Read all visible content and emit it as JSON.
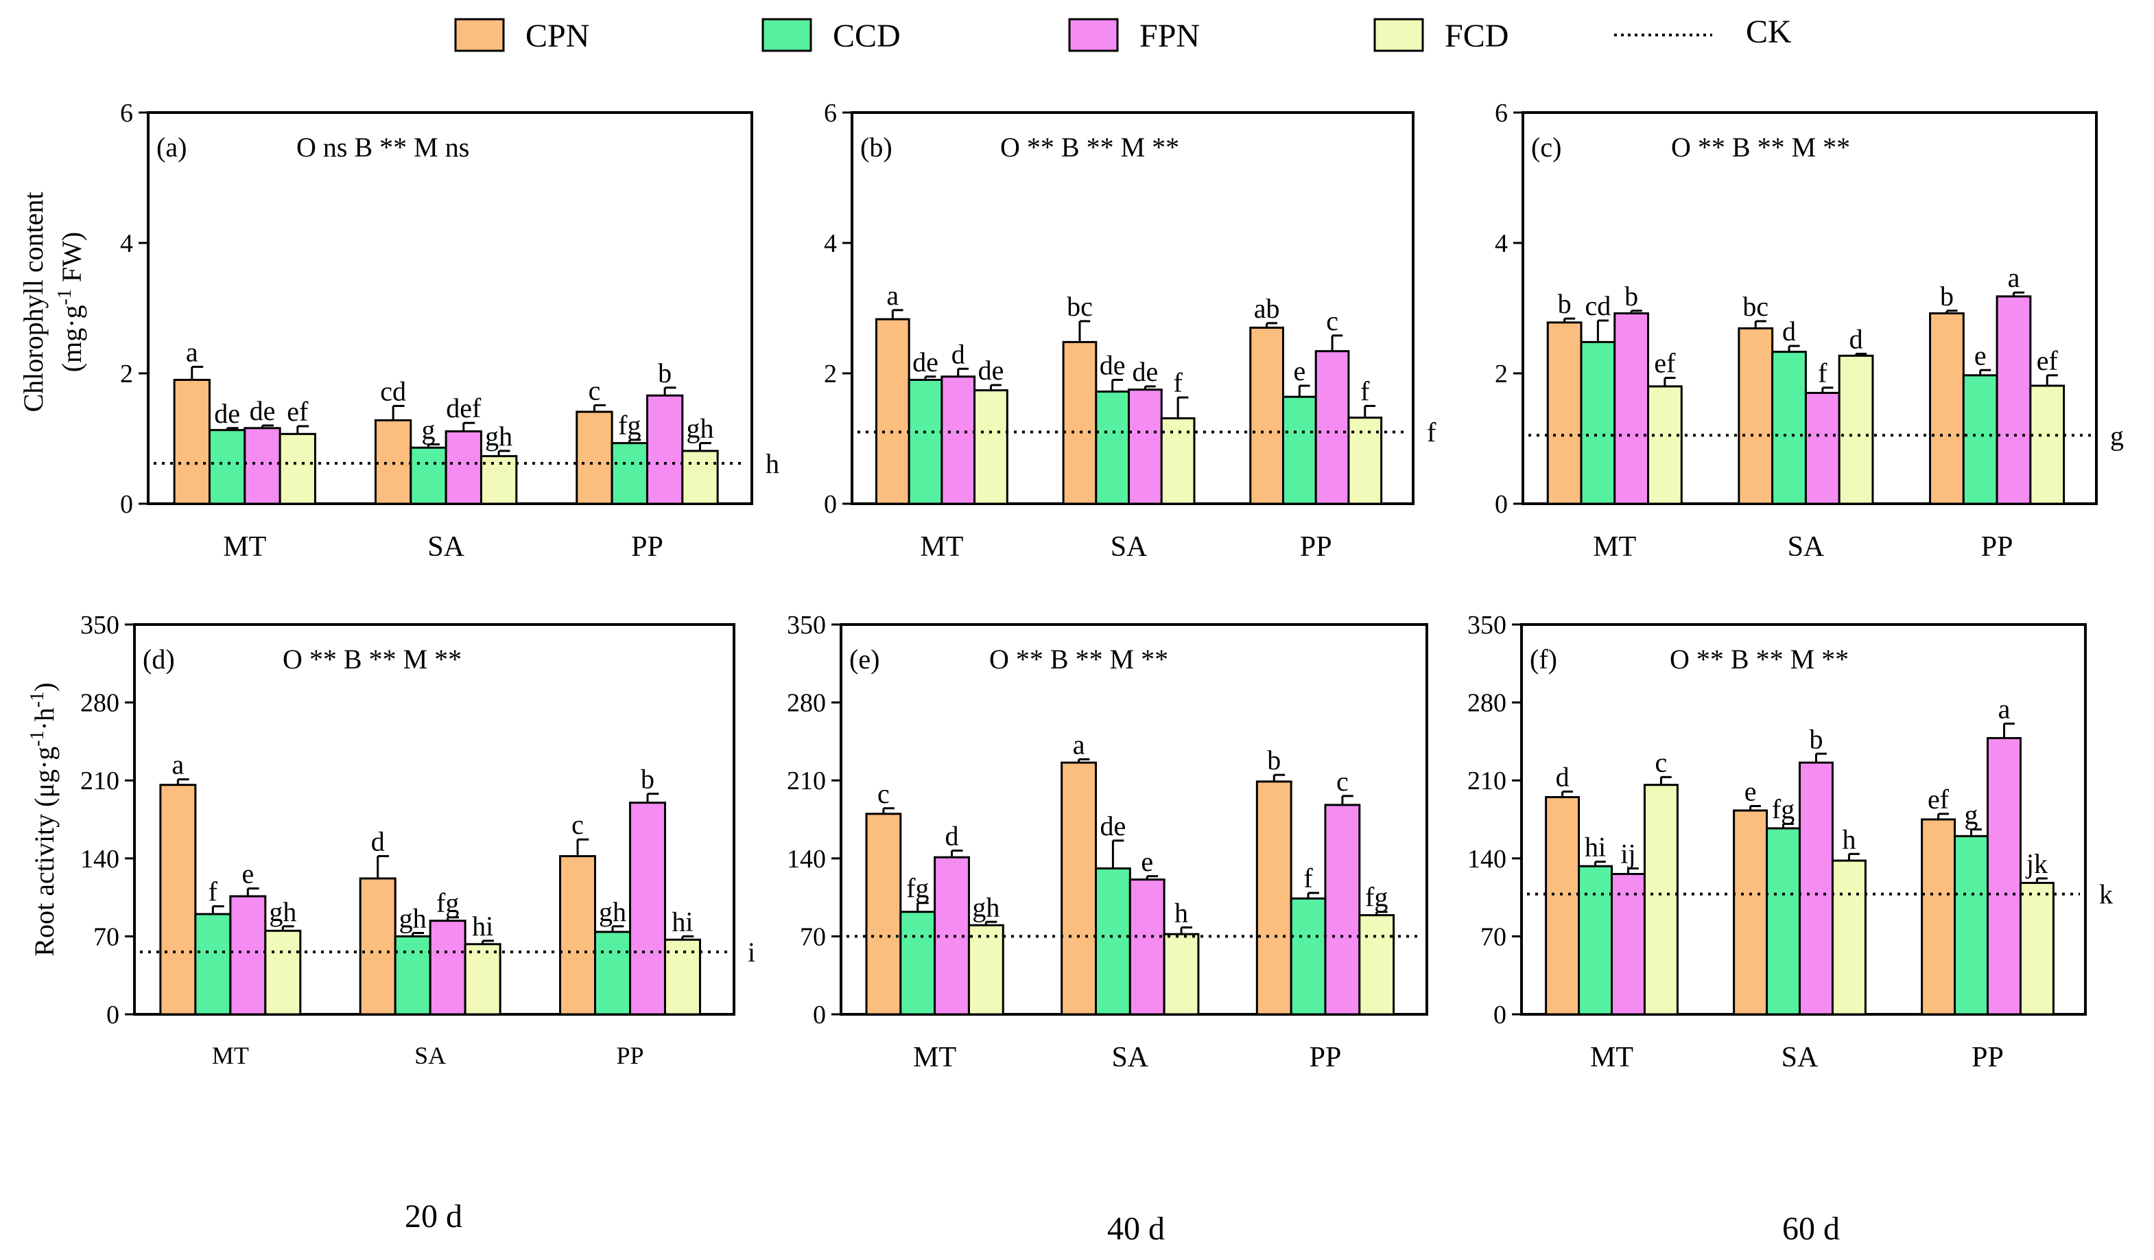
{
  "chart_data": {
    "type": "bar",
    "legend": [
      {
        "name": "CPN",
        "color": "#FBBE7E"
      },
      {
        "name": "CCD",
        "color": "#55F0A0"
      },
      {
        "name": "FPN",
        "color": "#F48CF2"
      },
      {
        "name": "FCD",
        "color": "#F1FAB8"
      },
      {
        "name": "CK",
        "style": "dotted"
      }
    ],
    "categories": [
      "MT",
      "SA",
      "PP"
    ],
    "row_ylabels": [
      {
        "main": "Chlorophyll content",
        "sub": "(mg·g",
        "sup": "-1",
        "tail": " FW)"
      },
      {
        "main": "Root activity (μg·g",
        "sup1": "-1",
        "mid": "·h",
        "sup2": "-1",
        "tail": ")"
      }
    ],
    "time_labels": [
      "20 d",
      "40 d",
      "60 d"
    ],
    "panels": [
      {
        "tag": "(a)",
        "stats": "O ns  B **  M ns",
        "ylim": [
          0,
          6
        ],
        "ticks": [
          0,
          2,
          4,
          6
        ],
        "ck": 0.62,
        "ck_letter": "h",
        "values": [
          [
            1.9,
            1.13,
            1.16,
            1.07
          ],
          [
            1.28,
            0.86,
            1.11,
            0.73
          ],
          [
            1.41,
            0.93,
            1.66,
            0.81
          ]
        ],
        "errors": [
          [
            0.2,
            0.03,
            0.04,
            0.12
          ],
          [
            0.22,
            0.05,
            0.13,
            0.08
          ],
          [
            0.1,
            0.05,
            0.12,
            0.12
          ]
        ],
        "letters": [
          [
            "a",
            "de",
            "de",
            "ef"
          ],
          [
            "cd",
            "g",
            "def",
            "gh"
          ],
          [
            "c",
            "fg",
            "b",
            "gh"
          ]
        ]
      },
      {
        "tag": "(b)",
        "stats": "O **  B **  M **",
        "ylim": [
          0,
          6
        ],
        "ticks": [
          0,
          2,
          4,
          6
        ],
        "ck": 1.1,
        "ck_letter": "f",
        "values": [
          [
            2.83,
            1.9,
            1.95,
            1.74
          ],
          [
            2.48,
            1.72,
            1.75,
            1.31
          ],
          [
            2.7,
            1.64,
            2.34,
            1.32
          ]
        ],
        "errors": [
          [
            0.14,
            0.05,
            0.12,
            0.08
          ],
          [
            0.32,
            0.18,
            0.05,
            0.32
          ],
          [
            0.07,
            0.17,
            0.24,
            0.18
          ]
        ],
        "letters": [
          [
            "a",
            "de",
            "d",
            "de"
          ],
          [
            "bc",
            "de",
            "de",
            "f"
          ],
          [
            "ab",
            "e",
            "c",
            "f"
          ]
        ]
      },
      {
        "tag": "(c)",
        "stats": "O **  B **  M **",
        "ylim": [
          0,
          6
        ],
        "ticks": [
          0,
          2,
          4,
          6
        ],
        "ck": 1.05,
        "ck_letter": "g",
        "values": [
          [
            2.78,
            2.48,
            2.92,
            1.8
          ],
          [
            2.69,
            2.33,
            1.7,
            2.27
          ],
          [
            2.92,
            1.97,
            3.18,
            1.81
          ]
        ],
        "errors": [
          [
            0.06,
            0.33,
            0.04,
            0.13
          ],
          [
            0.11,
            0.09,
            0.08,
            0.03
          ],
          [
            0.04,
            0.08,
            0.06,
            0.16
          ]
        ],
        "letters": [
          [
            "b",
            "cd",
            "b",
            "ef"
          ],
          [
            "bc",
            "d",
            "f",
            "d"
          ],
          [
            "b",
            "e",
            "a",
            "ef"
          ]
        ]
      },
      {
        "tag": "(d)",
        "stats": "O **  B **  M **",
        "ylim": [
          0,
          350
        ],
        "ticks": [
          0,
          70,
          140,
          210,
          280,
          350
        ],
        "ck": 56,
        "ck_letter": "i",
        "small_cats": true,
        "values": [
          [
            206,
            90,
            106,
            75
          ],
          [
            122,
            70,
            84,
            63
          ],
          [
            142,
            74,
            190,
            67
          ]
        ],
        "errors": [
          [
            5,
            7,
            7,
            4
          ],
          [
            20,
            3,
            3,
            3
          ],
          [
            15,
            5,
            8,
            3
          ]
        ],
        "letters": [
          [
            "a",
            "f",
            "e",
            "gh"
          ],
          [
            "d",
            "gh",
            "fg",
            "hi"
          ],
          [
            "c",
            "gh",
            "b",
            "hi"
          ]
        ]
      },
      {
        "tag": "(e)",
        "stats": "O **  B **  M **",
        "ylim": [
          0,
          350
        ],
        "ticks": [
          0,
          70,
          140,
          210,
          280,
          350
        ],
        "ck": 70,
        "ck_letter": "",
        "values": [
          [
            180,
            92,
            141,
            80
          ],
          [
            226,
            131,
            121,
            72
          ],
          [
            209,
            104,
            188,
            89
          ]
        ],
        "errors": [
          [
            5,
            8,
            6,
            3
          ],
          [
            3,
            25,
            3,
            6
          ],
          [
            6,
            5,
            8,
            3
          ]
        ],
        "letters": [
          [
            "c",
            "fg",
            "d",
            "gh"
          ],
          [
            "a",
            "de",
            "e",
            "h"
          ],
          [
            "b",
            "f",
            "c",
            "fg"
          ]
        ]
      },
      {
        "tag": "(f)",
        "stats": "O **  B **  M **",
        "ylim": [
          0,
          350
        ],
        "ticks": [
          0,
          70,
          140,
          210,
          280,
          350
        ],
        "ck": 108,
        "ck_letter": "k",
        "values": [
          [
            195,
            133,
            126,
            206
          ],
          [
            183,
            167,
            226,
            138
          ],
          [
            175,
            160,
            248,
            118
          ]
        ],
        "errors": [
          [
            5,
            4,
            5,
            7
          ],
          [
            4,
            4,
            8,
            6
          ],
          [
            5,
            6,
            13,
            4
          ]
        ],
        "letters": [
          [
            "d",
            "hi",
            "ij",
            "c"
          ],
          [
            "e",
            "fg",
            "b",
            "h"
          ],
          [
            "ef",
            "g",
            "a",
            "jk"
          ]
        ]
      }
    ]
  }
}
